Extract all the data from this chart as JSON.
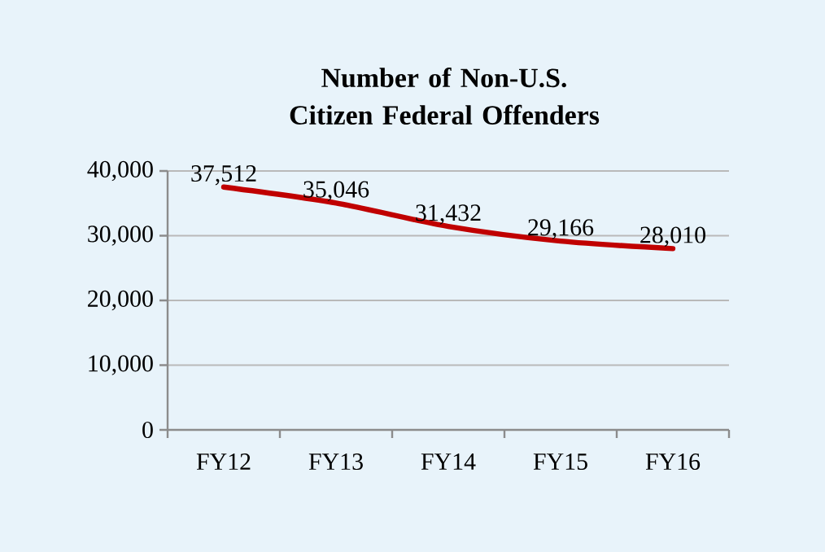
{
  "chart_data": {
    "type": "line",
    "title": "Number of Non-U.S. Citizen Federal Offenders",
    "categories": [
      "FY12",
      "FY13",
      "FY14",
      "FY15",
      "FY16"
    ],
    "series": [
      {
        "color": "#c00000",
        "values": [
          37512,
          35046,
          31432,
          29166,
          28010
        ],
        "value_labels": [
          "37,512",
          "35,046",
          "31,432",
          "29,166",
          "28,010"
        ]
      }
    ],
    "ylim": [
      0,
      40000
    ],
    "yticks": [
      {
        "value": 0,
        "label": "0"
      },
      {
        "value": 10000,
        "label": "10,000"
      },
      {
        "value": 20000,
        "label": "20,000"
      },
      {
        "value": 30000,
        "label": "30,000"
      },
      {
        "value": 40000,
        "label": "40,000"
      }
    ],
    "grid": "y"
  }
}
